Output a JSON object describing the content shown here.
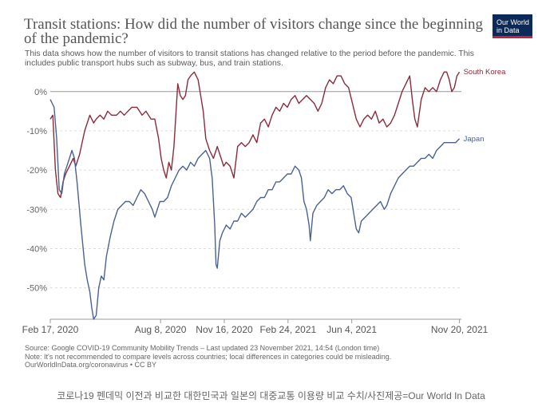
{
  "chart_data": {
    "type": "line",
    "title_line1": "Transit stations: How did the number of visitors change since the beginning",
    "title_line2": "of the pandemic?",
    "subtitle_line1": "This data shows how the number of visitors to transit stations has changed relative to the period before the pandemic. This",
    "subtitle_line2": "includes public transport hubs such as subway, bus, and train stations.",
    "ylabel": "",
    "ylim": [
      -58,
      3
    ],
    "y_ticks": [
      0,
      -10,
      -20,
      -30,
      -40,
      -50
    ],
    "y_tick_labels": [
      "0%",
      "-10%",
      "-20%",
      "-30%",
      "-40%",
      "-50%"
    ],
    "x_range_days": [
      0,
      645
    ],
    "x_ticks": [
      {
        "day": 0,
        "label": "Feb 17, 2020"
      },
      {
        "day": 173,
        "label": "Aug 8, 2020"
      },
      {
        "day": 273,
        "label": "Nov 16, 2020"
      },
      {
        "day": 373,
        "label": "Feb 24, 2021"
      },
      {
        "day": 473,
        "label": "Jun 4, 2021"
      },
      {
        "day": 642,
        "label": "Nov 20, 2021"
      }
    ],
    "grid": true,
    "series": [
      {
        "name": "South Korea",
        "color": "#8c2a3a",
        "points": [
          [
            0,
            -7
          ],
          [
            4,
            -6
          ],
          [
            8,
            -20
          ],
          [
            12,
            -26
          ],
          [
            16,
            -27
          ],
          [
            20,
            -23
          ],
          [
            24,
            -21
          ],
          [
            30,
            -19
          ],
          [
            36,
            -17
          ],
          [
            40,
            -19
          ],
          [
            46,
            -16
          ],
          [
            54,
            -10
          ],
          [
            62,
            -6
          ],
          [
            68,
            -8
          ],
          [
            72,
            -7
          ],
          [
            78,
            -6
          ],
          [
            84,
            -7
          ],
          [
            90,
            -5
          ],
          [
            96,
            -6
          ],
          [
            104,
            -6
          ],
          [
            110,
            -5
          ],
          [
            116,
            -6
          ],
          [
            122,
            -5
          ],
          [
            128,
            -4
          ],
          [
            136,
            -4
          ],
          [
            144,
            -6
          ],
          [
            150,
            -5
          ],
          [
            158,
            -7
          ],
          [
            164,
            -7
          ],
          [
            170,
            -12
          ],
          [
            174,
            -17
          ],
          [
            178,
            -20
          ],
          [
            182,
            -22
          ],
          [
            186,
            -18
          ],
          [
            190,
            -20
          ],
          [
            194,
            -14
          ],
          [
            200,
            2
          ],
          [
            204,
            -1
          ],
          [
            208,
            -2
          ],
          [
            212,
            -1
          ],
          [
            216,
            3
          ],
          [
            220,
            4
          ],
          [
            226,
            5
          ],
          [
            232,
            3
          ],
          [
            236,
            -1
          ],
          [
            240,
            -5
          ],
          [
            244,
            -12
          ],
          [
            250,
            -15
          ],
          [
            256,
            -17
          ],
          [
            262,
            -14
          ],
          [
            268,
            -17
          ],
          [
            272,
            -19
          ],
          [
            276,
            -18
          ],
          [
            282,
            -19
          ],
          [
            288,
            -22
          ],
          [
            294,
            -14
          ],
          [
            300,
            -13
          ],
          [
            306,
            -14
          ],
          [
            312,
            -13
          ],
          [
            318,
            -11
          ],
          [
            324,
            -13
          ],
          [
            330,
            -8
          ],
          [
            336,
            -7
          ],
          [
            342,
            -9
          ],
          [
            348,
            -6
          ],
          [
            354,
            -4
          ],
          [
            360,
            -5
          ],
          [
            366,
            -3
          ],
          [
            372,
            -4
          ],
          [
            378,
            -2
          ],
          [
            384,
            -1
          ],
          [
            390,
            -3
          ],
          [
            396,
            -2
          ],
          [
            402,
            -1
          ],
          [
            408,
            -2
          ],
          [
            414,
            -3
          ],
          [
            420,
            -5
          ],
          [
            426,
            -3
          ],
          [
            432,
            1
          ],
          [
            438,
            3
          ],
          [
            444,
            2
          ],
          [
            450,
            4
          ],
          [
            456,
            4
          ],
          [
            462,
            2
          ],
          [
            468,
            1
          ],
          [
            474,
            -3
          ],
          [
            480,
            -7
          ],
          [
            486,
            -9
          ],
          [
            492,
            -7
          ],
          [
            498,
            -6
          ],
          [
            504,
            -7
          ],
          [
            510,
            -5
          ],
          [
            516,
            -8
          ],
          [
            522,
            -7
          ],
          [
            528,
            -9
          ],
          [
            534,
            -8
          ],
          [
            540,
            -6
          ],
          [
            546,
            -3
          ],
          [
            552,
            0
          ],
          [
            558,
            2
          ],
          [
            564,
            4
          ],
          [
            568,
            -2
          ],
          [
            572,
            -7
          ],
          [
            576,
            -9
          ],
          [
            582,
            -2
          ],
          [
            588,
            1
          ],
          [
            594,
            0
          ],
          [
            600,
            1
          ],
          [
            606,
            0
          ],
          [
            612,
            3
          ],
          [
            618,
            5
          ],
          [
            622,
            5
          ],
          [
            626,
            3
          ],
          [
            630,
            0
          ],
          [
            634,
            1
          ],
          [
            638,
            4
          ],
          [
            642,
            5
          ]
        ]
      },
      {
        "name": "Japan",
        "color": "#4a6293",
        "points": [
          [
            0,
            -2
          ],
          [
            3,
            -3
          ],
          [
            6,
            -4
          ],
          [
            10,
            -12
          ],
          [
            14,
            -25
          ],
          [
            18,
            -26
          ],
          [
            22,
            -21
          ],
          [
            26,
            -19
          ],
          [
            30,
            -17
          ],
          [
            34,
            -15
          ],
          [
            38,
            -17
          ],
          [
            42,
            -23
          ],
          [
            48,
            -34
          ],
          [
            54,
            -44
          ],
          [
            58,
            -48
          ],
          [
            62,
            -51
          ],
          [
            65,
            -55
          ],
          [
            68,
            -58
          ],
          [
            72,
            -57
          ],
          [
            76,
            -50
          ],
          [
            80,
            -47
          ],
          [
            84,
            -48
          ],
          [
            88,
            -42
          ],
          [
            94,
            -37
          ],
          [
            100,
            -33
          ],
          [
            106,
            -30
          ],
          [
            112,
            -29
          ],
          [
            118,
            -28
          ],
          [
            124,
            -28
          ],
          [
            130,
            -29
          ],
          [
            136,
            -27
          ],
          [
            142,
            -25
          ],
          [
            148,
            -26
          ],
          [
            154,
            -28
          ],
          [
            160,
            -30
          ],
          [
            164,
            -32
          ],
          [
            168,
            -30
          ],
          [
            172,
            -28
          ],
          [
            178,
            -28
          ],
          [
            184,
            -27
          ],
          [
            190,
            -24
          ],
          [
            196,
            -22
          ],
          [
            202,
            -20
          ],
          [
            208,
            -19
          ],
          [
            214,
            -20
          ],
          [
            220,
            -18
          ],
          [
            226,
            -19
          ],
          [
            232,
            -17
          ],
          [
            238,
            -16
          ],
          [
            244,
            -15
          ],
          [
            250,
            -17
          ],
          [
            254,
            -22
          ],
          [
            258,
            -34
          ],
          [
            260,
            -44
          ],
          [
            262,
            -45
          ],
          [
            266,
            -38
          ],
          [
            270,
            -36
          ],
          [
            276,
            -34
          ],
          [
            282,
            -35
          ],
          [
            288,
            -33
          ],
          [
            294,
            -33
          ],
          [
            300,
            -31
          ],
          [
            306,
            -32
          ],
          [
            312,
            -31
          ],
          [
            318,
            -30
          ],
          [
            324,
            -28
          ],
          [
            330,
            -27
          ],
          [
            336,
            -27
          ],
          [
            342,
            -25
          ],
          [
            348,
            -25
          ],
          [
            354,
            -23
          ],
          [
            360,
            -23
          ],
          [
            366,
            -22
          ],
          [
            372,
            -21
          ],
          [
            378,
            -21
          ],
          [
            384,
            -19
          ],
          [
            390,
            -20
          ],
          [
            394,
            -22
          ],
          [
            398,
            -28
          ],
          [
            402,
            -30
          ],
          [
            406,
            -34
          ],
          [
            408,
            -38
          ],
          [
            412,
            -31
          ],
          [
            418,
            -29
          ],
          [
            424,
            -28
          ],
          [
            430,
            -27
          ],
          [
            436,
            -25
          ],
          [
            442,
            -26
          ],
          [
            448,
            -25
          ],
          [
            454,
            -25
          ],
          [
            460,
            -24
          ],
          [
            466,
            -26
          ],
          [
            472,
            -27
          ],
          [
            476,
            -31
          ],
          [
            480,
            -35
          ],
          [
            484,
            -36
          ],
          [
            488,
            -33
          ],
          [
            494,
            -32
          ],
          [
            500,
            -31
          ],
          [
            506,
            -30
          ],
          [
            512,
            -29
          ],
          [
            518,
            -28
          ],
          [
            524,
            -30
          ],
          [
            528,
            -29
          ],
          [
            534,
            -26
          ],
          [
            540,
            -24
          ],
          [
            546,
            -22
          ],
          [
            552,
            -21
          ],
          [
            558,
            -20
          ],
          [
            564,
            -19
          ],
          [
            570,
            -19
          ],
          [
            576,
            -18
          ],
          [
            582,
            -17
          ],
          [
            588,
            -17
          ],
          [
            594,
            -16
          ],
          [
            600,
            -17
          ],
          [
            606,
            -15
          ],
          [
            612,
            -14
          ],
          [
            618,
            -13
          ],
          [
            624,
            -13
          ],
          [
            630,
            -13
          ],
          [
            636,
            -13
          ],
          [
            642,
            -12
          ]
        ]
      }
    ]
  },
  "logo": {
    "line1": "Our World",
    "line2": "in Data"
  },
  "footer": {
    "line1": "Source: Google COVID-19 Community Mobility Trends – Last updated 23 November 2021, 14:54 (London time)",
    "line2": "Note: It's not recommended to compare levels across countries; local differences in categories could be misleading.",
    "line3": "OurWorldInData.org/coronavirus • CC BY"
  },
  "caption": "코로나19 펜데믹 이전과 비교한 대한민국과 일본의 대중교통 이용량 비교 수치/사진제공=Our World In Data",
  "colors": {
    "zero_line": "#999999",
    "grid": "#dddddd",
    "axis_text": "#666666"
  }
}
